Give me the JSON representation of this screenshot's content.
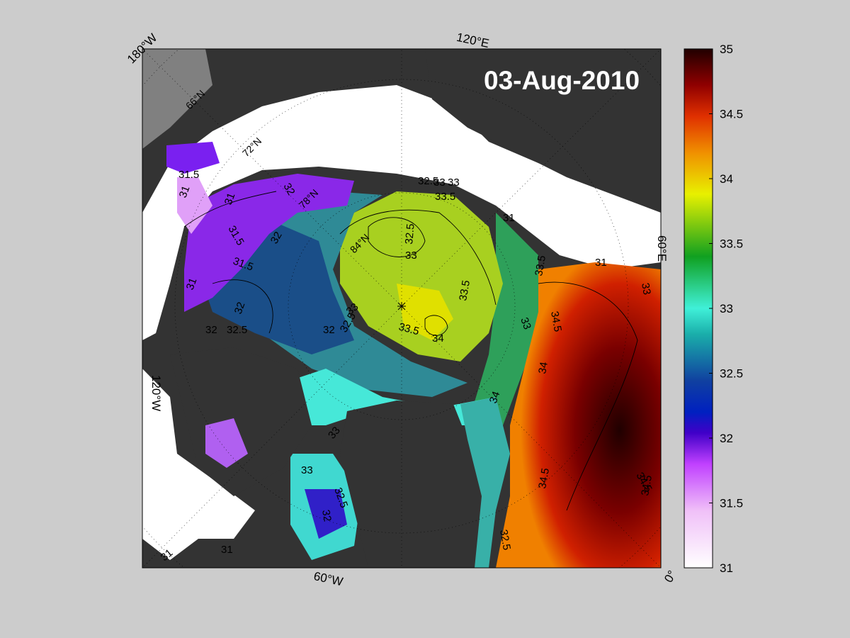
{
  "title": "03-Aug-2010",
  "map": {
    "projection": "polar stereographic (north)",
    "land_color": "#333333",
    "ice_color": "#ffffff",
    "background_color": "#cccccc",
    "longitude_labels": [
      "180°W",
      "120°E",
      "60°E",
      "0°",
      "60°W",
      "120°W"
    ],
    "latitude_labels": [
      "66°N",
      "72°N",
      "78°N",
      "84°N"
    ],
    "contour_labels": [
      "31.5",
      "31",
      "31",
      "31.5",
      "31.5",
      "31",
      "32",
      "32",
      "32.5",
      "32",
      "32",
      "32",
      "32.5",
      "32.5",
      "33",
      "33.5",
      "33",
      "33",
      "33.5",
      "34",
      "33.5",
      "32.5",
      "33",
      "31",
      "33.5",
      "33",
      "34.5",
      "34",
      "34.5",
      "34.5",
      "33",
      "32",
      "32.5",
      "33",
      "31",
      "31",
      "31",
      "32.5",
      "33",
      "34",
      "34.5"
    ]
  },
  "colorbar": {
    "min": 31,
    "max": 35,
    "ticks": [
      "31",
      "31.5",
      "32",
      "32.5",
      "33",
      "33.5",
      "34",
      "34.5",
      "35"
    ],
    "colors": [
      "#ffffff",
      "#f0c0f8",
      "#c040ff",
      "#4000c8",
      "#1040a0",
      "#1aaeaa",
      "#40f0d8",
      "#10a020",
      "#e8f000",
      "#f09000",
      "#e03000",
      "#900000",
      "#200000"
    ]
  }
}
